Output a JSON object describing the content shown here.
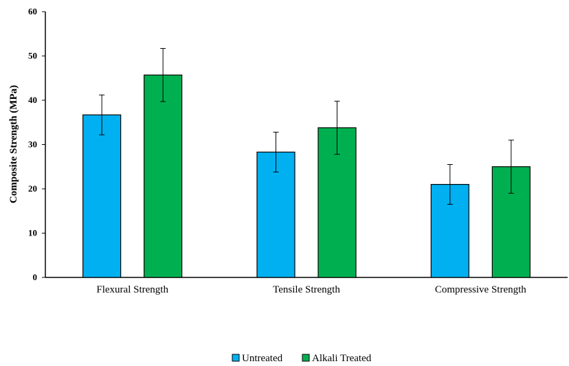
{
  "chart_data": {
    "type": "bar",
    "title": "",
    "xlabel": "",
    "ylabel": "Composite Strength (MPa)",
    "ylim": [
      0,
      60
    ],
    "yticks": [
      0,
      10,
      20,
      30,
      40,
      50,
      60
    ],
    "categories": [
      "Flexural Strength",
      "Tensile Strength",
      "Compressive Strength"
    ],
    "series": [
      {
        "name": "Untreated",
        "color": "#00B0F0",
        "values": [
          36.7,
          28.3,
          21.0
        ],
        "errors": [
          4.5,
          4.5,
          4.5
        ]
      },
      {
        "name": "Alkali Treated",
        "color": "#00B050",
        "values": [
          45.7,
          33.8,
          25.0
        ],
        "errors": [
          6.0,
          6.0,
          6.0
        ]
      }
    ],
    "grid": false,
    "legend_position": "bottom"
  }
}
